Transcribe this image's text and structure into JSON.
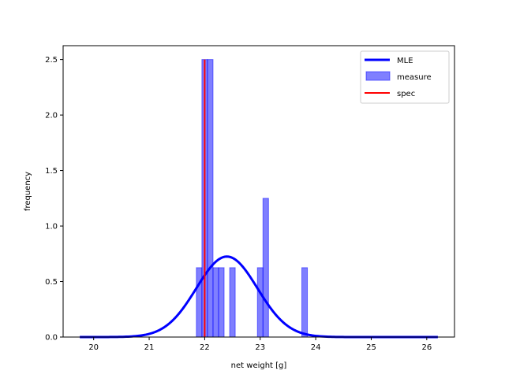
{
  "chart_data": {
    "type": "bar",
    "xlabel": "net weight [g]",
    "ylabel": "frequency",
    "xlim": [
      19.45,
      26.5
    ],
    "ylim": [
      0,
      2.625
    ],
    "xticks": [
      "20",
      "21",
      "22",
      "23",
      "24",
      "25",
      "26"
    ],
    "yticks": [
      "0.0",
      "0.5",
      "1.0",
      "1.5",
      "2.0",
      "2.5"
    ],
    "legend_position": "top-right",
    "histogram": {
      "name": "measure",
      "color": "#0000ff",
      "opacity": 0.5,
      "bins": [
        {
          "x0": 21.85,
          "x1": 21.95,
          "value": 0.625
        },
        {
          "x0": 21.95,
          "x1": 22.05,
          "value": 2.5
        },
        {
          "x0": 22.05,
          "x1": 22.15,
          "value": 2.5
        },
        {
          "x0": 22.15,
          "x1": 22.25,
          "value": 0.625
        },
        {
          "x0": 22.25,
          "x1": 22.35,
          "value": 0.625
        },
        {
          "x0": 22.45,
          "x1": 22.55,
          "value": 0.625
        },
        {
          "x0": 22.95,
          "x1": 23.05,
          "value": 0.625
        },
        {
          "x0": 23.05,
          "x1": 23.15,
          "value": 1.25
        },
        {
          "x0": 23.75,
          "x1": 23.85,
          "value": 0.625
        }
      ]
    },
    "mle": {
      "name": "MLE",
      "color": "#0000ff",
      "mean": 22.4,
      "std": 0.55,
      "x_range": [
        19.75,
        26.2
      ]
    },
    "spec": {
      "name": "spec",
      "color": "#ff0000",
      "x": 22.0,
      "y_range": [
        0,
        2.5
      ]
    },
    "legend": [
      "MLE",
      "measure",
      "spec"
    ]
  }
}
